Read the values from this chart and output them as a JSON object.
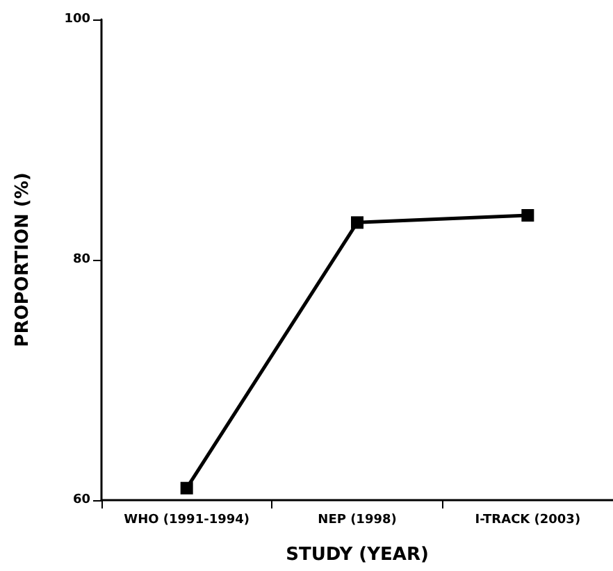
{
  "chart_data": {
    "type": "line",
    "xlabel": "STUDY (YEAR)",
    "ylabel": "PROPORTION (%)",
    "categories": [
      "WHO (1991-1994)",
      "NEP (1998)",
      "I-TRACK (2003)"
    ],
    "series": [
      {
        "color": "#000000",
        "values": [
          61.0,
          83.1,
          83.7
        ]
      }
    ],
    "ylim": [
      60,
      100
    ],
    "yticks": [
      60,
      80,
      100
    ],
    "grid": false,
    "marker": "square",
    "line_style": "solid"
  }
}
